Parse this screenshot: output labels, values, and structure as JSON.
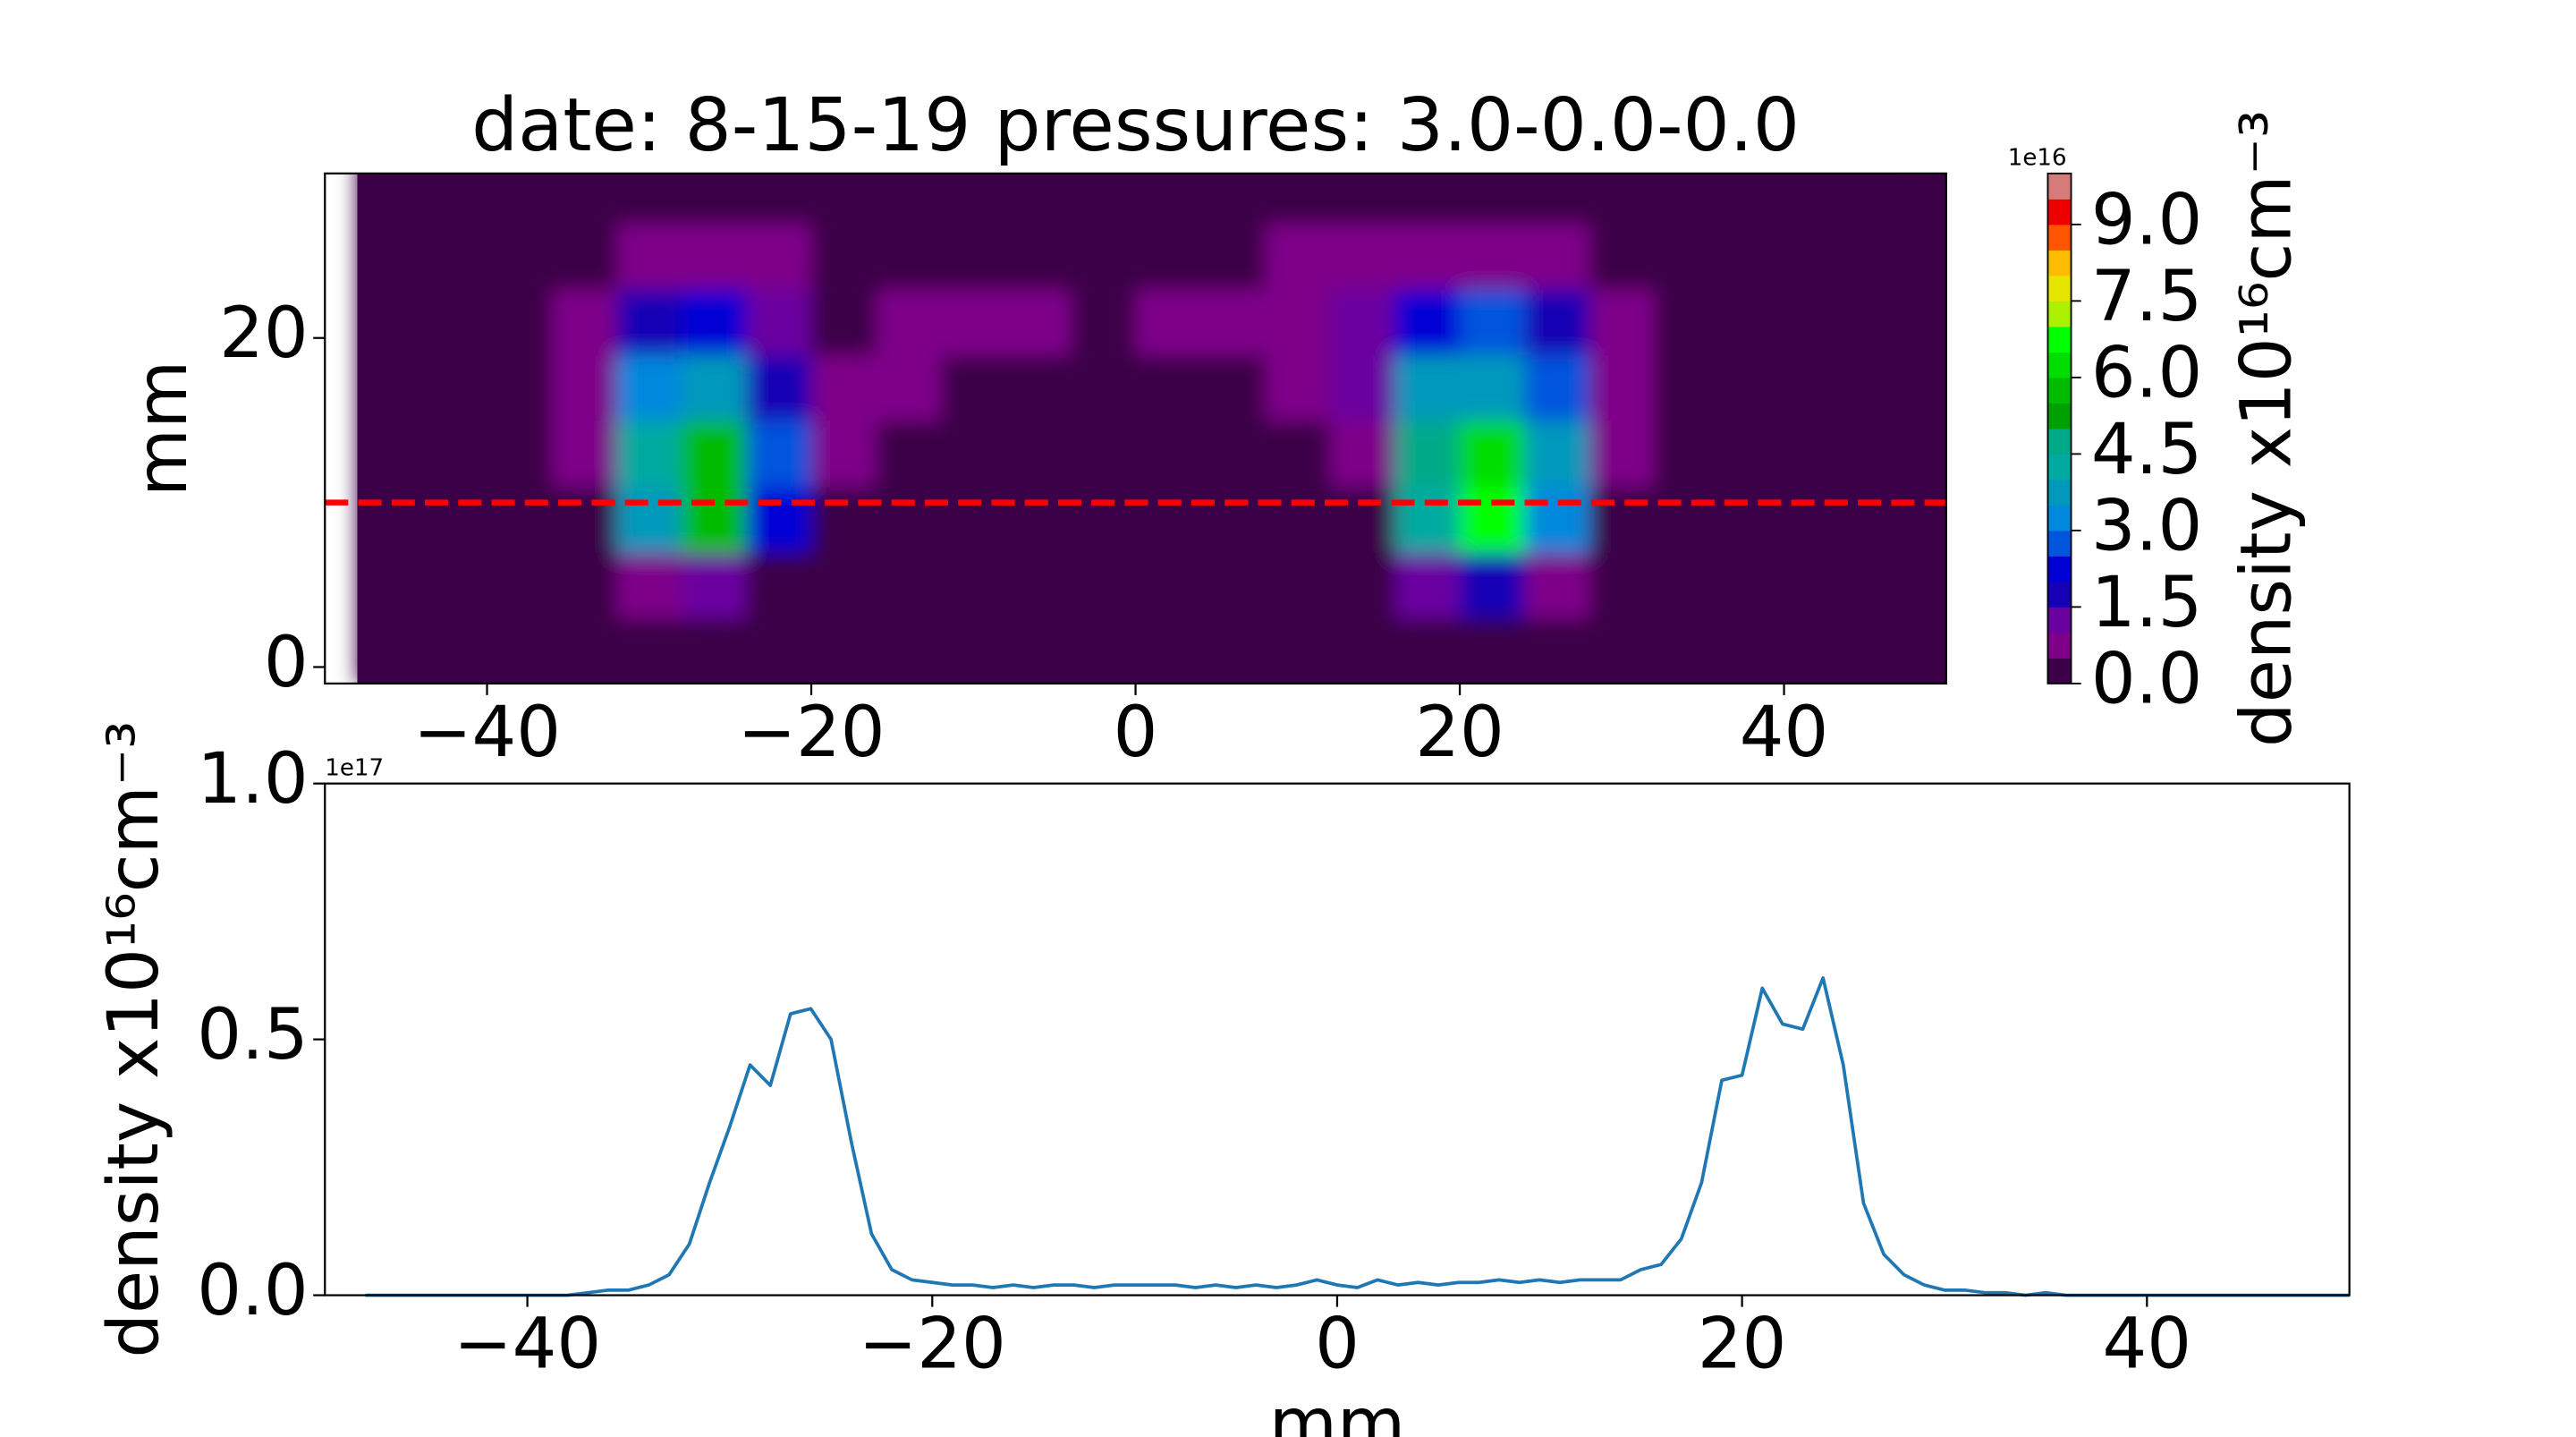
{
  "chart_data": [
    {
      "type": "contour",
      "title": "date: 8-15-19 pressures: 3.0-0.0-0.0",
      "ylabel": "mm",
      "x": [
        -46,
        -42,
        -38,
        -34,
        -30,
        -26,
        -22,
        -18,
        -14,
        -10,
        -6,
        -2,
        2,
        6,
        10,
        14,
        18,
        22,
        26,
        30,
        34,
        38,
        42,
        46
      ],
      "y": [
        1,
        5,
        9,
        13,
        17,
        21,
        25,
        29
      ],
      "z": [
        [
          0,
          0,
          0,
          0,
          0,
          0,
          0,
          0,
          0,
          0,
          0,
          0,
          0,
          0,
          0,
          0,
          0,
          0,
          0,
          0,
          0,
          0,
          0,
          0
        ],
        [
          0,
          0,
          0,
          0,
          0.5,
          1,
          0.3,
          0,
          0,
          0,
          0,
          0,
          0,
          0,
          0,
          0,
          1,
          1.5,
          0.5,
          0,
          0,
          0,
          0,
          0
        ],
        [
          0,
          0,
          0,
          0.3,
          3.5,
          5.5,
          2,
          0.3,
          0,
          0,
          0,
          0,
          0,
          0,
          0,
          0.3,
          4,
          6.5,
          3,
          0.3,
          0,
          0,
          0,
          0
        ],
        [
          0,
          0,
          0,
          0.5,
          4,
          5.5,
          2.5,
          0.5,
          0,
          0,
          0,
          0,
          0,
          0,
          0,
          0.8,
          4.5,
          6,
          3.5,
          0.5,
          0,
          0,
          0,
          0
        ],
        [
          0,
          0,
          0,
          0.8,
          3,
          3.5,
          1.5,
          0.5,
          0.5,
          0.3,
          0.3,
          0.3,
          0.3,
          0.3,
          0.5,
          1,
          3.5,
          3.5,
          2.5,
          0.5,
          0,
          0,
          0,
          0
        ],
        [
          0,
          0,
          0,
          0.5,
          1.5,
          2,
          1,
          0.3,
          0.5,
          0.5,
          0.5,
          0.3,
          0.5,
          0.5,
          0.8,
          1,
          2,
          2.5,
          1.5,
          0.5,
          0,
          0,
          0,
          0
        ],
        [
          0,
          0,
          0,
          0.3,
          0.8,
          0.8,
          0.5,
          0,
          0.3,
          0,
          0,
          0,
          0,
          0.3,
          0.5,
          0.5,
          0.8,
          0.8,
          0.5,
          0,
          0,
          0,
          0,
          0
        ],
        [
          0,
          0,
          0,
          0,
          0,
          0,
          0,
          0,
          0,
          0,
          0,
          0,
          0,
          0,
          0,
          0,
          0,
          0,
          0,
          0,
          0,
          0,
          0,
          0
        ]
      ],
      "levels": [
        0,
        0.5,
        1,
        1.5,
        2,
        2.5,
        3,
        3.5,
        4,
        4.5,
        5,
        5.5,
        6,
        6.5,
        7,
        7.5,
        8,
        8.5,
        9,
        9.5,
        10
      ],
      "colors": [
        "#3b0047",
        "#7e0089",
        "#6a00a0",
        "#1500b5",
        "#0000d5",
        "#0055dd",
        "#0088dd",
        "#0099bb",
        "#00aaa0",
        "#00aa88",
        "#00a000",
        "#00bb00",
        "#00dd00",
        "#00ff00",
        "#aaf000",
        "#e5e500",
        "#ffbb00",
        "#ff5500",
        "#ee0000",
        "#d67b7b"
      ],
      "hline": {
        "y": 10,
        "color": "#ff0000"
      },
      "xlim": [
        -50,
        50
      ],
      "ylim": [
        -1,
        30
      ],
      "xticks": [
        {
          "value": -40,
          "label": "−40"
        },
        {
          "value": -20,
          "label": "−20"
        },
        0,
        20,
        40
      ],
      "yticks": [
        0,
        20
      ],
      "colorbar_label": "density x10¹⁶cm⁻³",
      "colorbar_offset_text": "1e16",
      "colorbar_ticks": [
        {
          "value": 0,
          "label": "0.0"
        },
        1.5,
        {
          "value": 3,
          "label": "3.0"
        },
        4.5,
        {
          "value": 6,
          "label": "6.0"
        },
        7.5,
        {
          "value": 9,
          "label": "9.0"
        }
      ]
    },
    {
      "type": "line",
      "xlabel": "mm",
      "ylabel": "density x10¹⁶cm⁻³",
      "y_offset_text": "1e17",
      "color": "#1f77b4",
      "x": [
        -48,
        -47,
        -46,
        -45,
        -44,
        -43,
        -42,
        -41,
        -40,
        -39,
        -38,
        -37,
        -36,
        -35,
        -34,
        -33,
        -32,
        -31,
        -30,
        -29,
        -28,
        -27,
        -26,
        -25,
        -24,
        -23,
        -22,
        -21,
        -20,
        -19,
        -18,
        -17,
        -16,
        -15,
        -14,
        -13,
        -12,
        -11,
        -10,
        -9,
        -8,
        -7,
        -6,
        -5,
        -4,
        -3,
        -2,
        -1,
        0,
        1,
        2,
        3,
        4,
        5,
        6,
        7,
        8,
        9,
        10,
        11,
        12,
        13,
        14,
        15,
        16,
        17,
        18,
        19,
        20,
        21,
        22,
        23,
        24,
        25,
        26,
        27,
        28,
        29,
        30,
        31,
        32,
        33,
        34,
        35,
        36,
        37,
        38,
        39,
        40,
        41,
        42,
        43,
        44,
        45,
        46,
        47,
        48,
        49,
        50
      ],
      "values": [
        0,
        0,
        0,
        0,
        0,
        0,
        0,
        0,
        0,
        0,
        0,
        0.005,
        0.01,
        0.01,
        0.02,
        0.04,
        0.1,
        0.22,
        0.33,
        0.45,
        0.41,
        0.55,
        0.56,
        0.5,
        0.3,
        0.12,
        0.05,
        0.03,
        0.025,
        0.02,
        0.02,
        0.015,
        0.02,
        0.015,
        0.02,
        0.02,
        0.015,
        0.02,
        0.02,
        0.02,
        0.02,
        0.015,
        0.02,
        0.015,
        0.02,
        0.015,
        0.02,
        0.03,
        0.02,
        0.015,
        0.03,
        0.02,
        0.025,
        0.02,
        0.025,
        0.025,
        0.03,
        0.025,
        0.03,
        0.025,
        0.03,
        0.03,
        0.03,
        0.05,
        0.06,
        0.11,
        0.22,
        0.42,
        0.43,
        0.6,
        0.53,
        0.52,
        0.62,
        0.45,
        0.18,
        0.08,
        0.04,
        0.02,
        0.01,
        0.01,
        0.005,
        0.005,
        0,
        0.005,
        0,
        0,
        0,
        0,
        0,
        0,
        0,
        0,
        0,
        0,
        0,
        0,
        0,
        0,
        0
      ],
      "xlim": [
        -50,
        50
      ],
      "ylim": [
        0,
        1
      ],
      "xticks": [
        {
          "value": -40,
          "label": "−40"
        },
        {
          "value": -20,
          "label": "−20"
        },
        0,
        20,
        40
      ],
      "yticks": [
        {
          "value": 0,
          "label": "0.0"
        },
        0.5,
        {
          "value": 1,
          "label": "1.0"
        }
      ]
    }
  ]
}
